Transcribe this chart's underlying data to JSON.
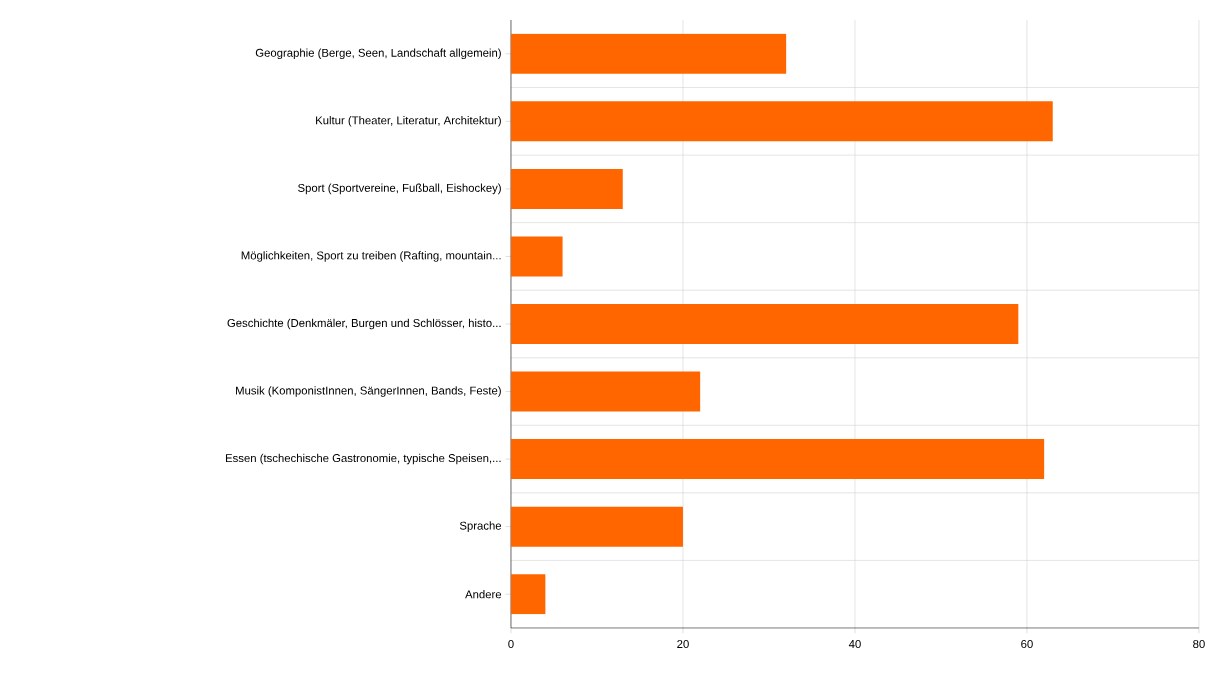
{
  "chart_data": {
    "type": "bar",
    "orientation": "horizontal",
    "categories": [
      "Geographie (Berge, Seen, Landschaft allgemein)",
      "Kultur (Theater, Literatur, Architektur)",
      "Sport (Sportvereine, Fußball, Eishockey)",
      "Möglichkeiten, Sport zu treiben (Rafting, mountain...",
      "Geschichte (Denkmäler, Burgen und Schlösser, histo...",
      "Musik (KomponistInnen, SängerInnen, Bands, Feste)",
      "Essen (tschechische Gastronomie, typische Speisen,...",
      "Sprache",
      "Andere"
    ],
    "values": [
      32,
      63,
      13,
      6,
      59,
      22,
      62,
      20,
      4
    ],
    "color": "#ff6600",
    "xlim": [
      0,
      80
    ],
    "xticks": [
      0,
      20,
      40,
      60,
      80
    ],
    "grid": true
  }
}
